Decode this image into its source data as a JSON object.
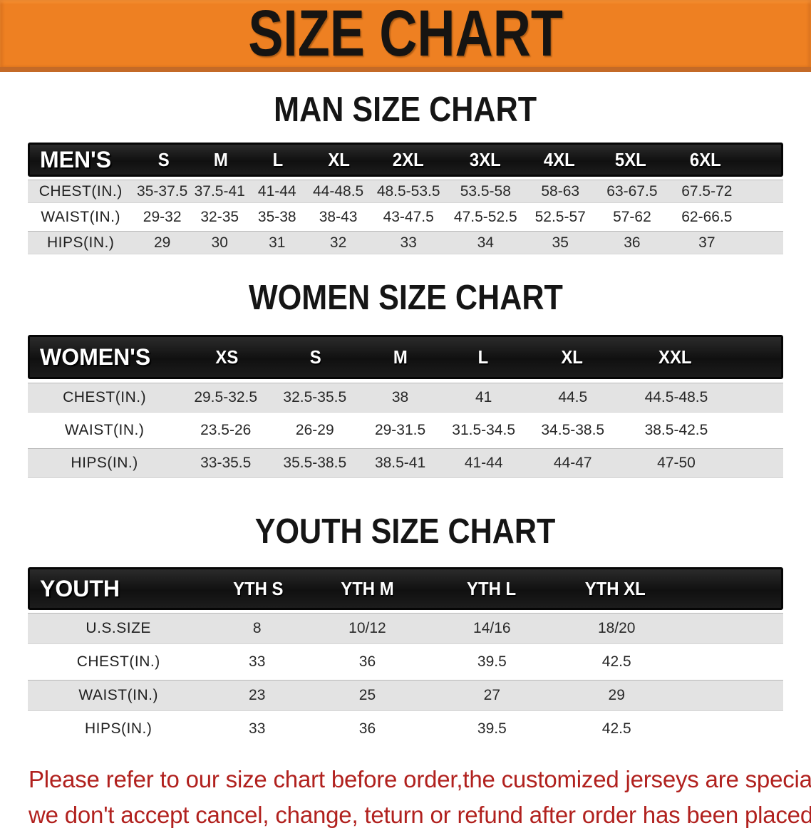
{
  "banner": {
    "title": "SIZE CHART",
    "bg_color": "#ee8022",
    "text_color": "#161412"
  },
  "sections": [
    {
      "key": "men",
      "heading": "MAN SIZE CHART",
      "table": {
        "header_label": "MEN'S",
        "sizes": [
          "S",
          "M",
          "L",
          "XL",
          "2XL",
          "3XL",
          "4XL",
          "5XL",
          "6XL"
        ],
        "rows": [
          {
            "label": "CHEST(IN.)",
            "values": [
              "35-37.5",
              "37.5-41",
              "41-44",
              "44-48.5",
              "48.5-53.5",
              "53.5-58",
              "58-63",
              "63-67.5",
              "67.5-72"
            ]
          },
          {
            "label": "WAIST(IN.)",
            "values": [
              "29-32",
              "32-35",
              "35-38",
              "38-43",
              "43-47.5",
              "47.5-52.5",
              "52.5-57",
              "57-62",
              "62-66.5"
            ]
          },
          {
            "label": "HIPS(IN.)",
            "values": [
              "29",
              "30",
              "31",
              "32",
              "33",
              "34",
              "35",
              "36",
              "37"
            ]
          }
        ]
      }
    },
    {
      "key": "women",
      "heading": "WOMEN SIZE CHART",
      "table": {
        "header_label": "WOMEN'S",
        "sizes": [
          "XS",
          "S",
          "M",
          "L",
          "XL",
          "XXL"
        ],
        "rows": [
          {
            "label": "CHEST(IN.)",
            "values": [
              "29.5-32.5",
              "32.5-35.5",
              "38",
              "41",
              "44.5",
              "44.5-48.5"
            ]
          },
          {
            "label": "WAIST(IN.)",
            "values": [
              "23.5-26",
              "26-29",
              "29-31.5",
              "31.5-34.5",
              "34.5-38.5",
              "38.5-42.5"
            ]
          },
          {
            "label": "HIPS(IN.)",
            "values": [
              "33-35.5",
              "35.5-38.5",
              "38.5-41",
              "41-44",
              "44-47",
              "47-50"
            ]
          }
        ]
      }
    },
    {
      "key": "youth",
      "heading": "YOUTH SIZE CHART",
      "table": {
        "header_label": "YOUTH",
        "sizes": [
          "YTH S",
          "YTH M",
          "YTH L",
          "YTH XL"
        ],
        "rows": [
          {
            "label": "U.S.SIZE",
            "values": [
              "8",
              "10/12",
              "14/16",
              "18/20"
            ]
          },
          {
            "label": "CHEST(IN.)",
            "values": [
              "33",
              "36",
              "39.5",
              "42.5"
            ]
          },
          {
            "label": "WAIST(IN.)",
            "values": [
              "23",
              "25",
              "27",
              "29"
            ]
          },
          {
            "label": "HIPS(IN.)",
            "values": [
              "33",
              "36",
              "39.5",
              "42.5"
            ]
          }
        ]
      }
    }
  ],
  "footer": {
    "line1": "Please refer to our size chart before order,the customized jerseys are special products,",
    "line2": "we don't accept cancel, change, teturn or refund after order has been placed!",
    "text_color": "#b1211e"
  }
}
